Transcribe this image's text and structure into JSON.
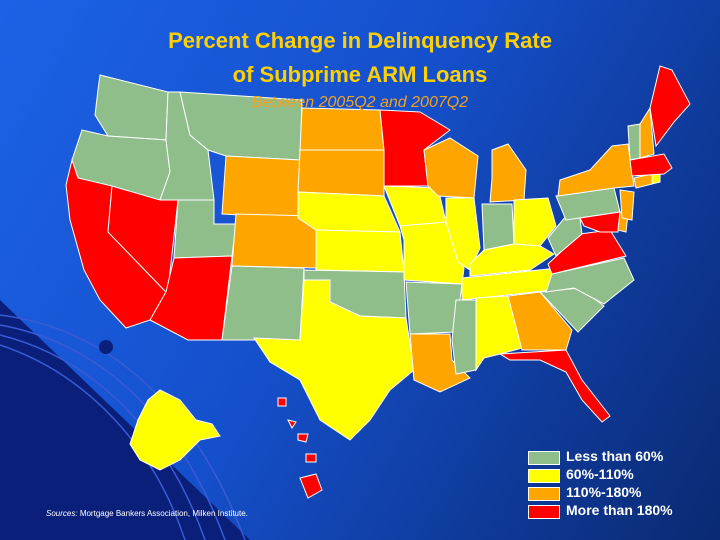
{
  "title": {
    "line1": "Percent Change in Delinquency Rate",
    "line2": "of Subprime ARM Loans",
    "subtitle": "Between 2005Q2 and 2007Q2"
  },
  "colors": {
    "less_than_60": "#8fbe8b",
    "60_110": "#ffff00",
    "110_180": "#ffa500",
    "more_than_180": "#ff0000",
    "background": "#1a5ee0"
  },
  "legend": [
    {
      "label": "Less than 60%",
      "category": "less_than_60"
    },
    {
      "label": "60%-110%",
      "category": "60_110"
    },
    {
      "label": "110%-180%",
      "category": "110_180"
    },
    {
      "label": "More than 180%",
      "category": "more_than_180"
    }
  ],
  "states": {
    "WA": "less_than_60",
    "OR": "less_than_60",
    "ID": "less_than_60",
    "MT": "less_than_60",
    "UT": "less_than_60",
    "NM": "less_than_60",
    "OK": "less_than_60",
    "AR": "less_than_60",
    "IN": "less_than_60",
    "PA": "less_than_60",
    "WV": "less_than_60",
    "NC": "less_than_60",
    "SC": "less_than_60",
    "MS": "less_than_60",
    "VT": "less_than_60",
    "CA": "more_than_180",
    "NV": "more_than_180",
    "AZ": "more_than_180",
    "MN": "more_than_180",
    "VA": "more_than_180",
    "FL": "more_than_180",
    "MA": "more_than_180",
    "ME": "more_than_180",
    "MD": "more_than_180",
    "HI": "more_than_180",
    "WY": "110_180",
    "ND": "110_180",
    "SD": "110_180",
    "CO": "110_180",
    "WI": "110_180",
    "MI": "110_180",
    "NY": "110_180",
    "NJ": "110_180",
    "GA": "110_180",
    "LA": "110_180",
    "NH": "110_180",
    "CT": "110_180",
    "DE": "110_180",
    "NE": "60_110",
    "KS": "60_110",
    "IA": "60_110",
    "MO": "60_110",
    "IL": "60_110",
    "OH": "60_110",
    "KY": "60_110",
    "TN": "60_110",
    "AL": "60_110",
    "TX": "60_110",
    "AK": "60_110",
    "RI": "60_110"
  },
  "sources": {
    "label": "Sources:",
    "text": "Mortgage Bankers Association, Milken Institute."
  }
}
